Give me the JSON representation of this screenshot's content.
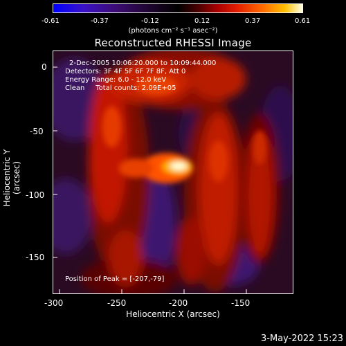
{
  "colorbar": {
    "ticks": [
      "-0.61",
      "-0.37",
      "-0.12",
      "0.12",
      "0.37",
      "0.61"
    ],
    "units": "(photons cm⁻² s⁻¹ asec⁻²)"
  },
  "title": "Reconstructed RHESSI Image",
  "annotation": {
    "time": "2-Dec-2005 10:06:20.000 to 10:09:44.000",
    "detectors": "Detectors: 3F 4F 5F 6F 7F 8F, Att 0",
    "energy": "Energy Range: 6.0 - 12.0 keV",
    "clean": "Clean     Total counts: 2.09E+05",
    "peak": "Position of Peak = [-207,-79]"
  },
  "axes": {
    "xlabel": "Heliocentric X (arcsec)",
    "ylabel": "Heliocentric Y (arcsec)",
    "xticks": [
      "-300",
      "-250",
      "-200",
      "-150"
    ],
    "yticks": [
      "0",
      "-50",
      "-100",
      "-150"
    ]
  },
  "footer": {
    "date": "3-May-2022 15:23"
  }
}
